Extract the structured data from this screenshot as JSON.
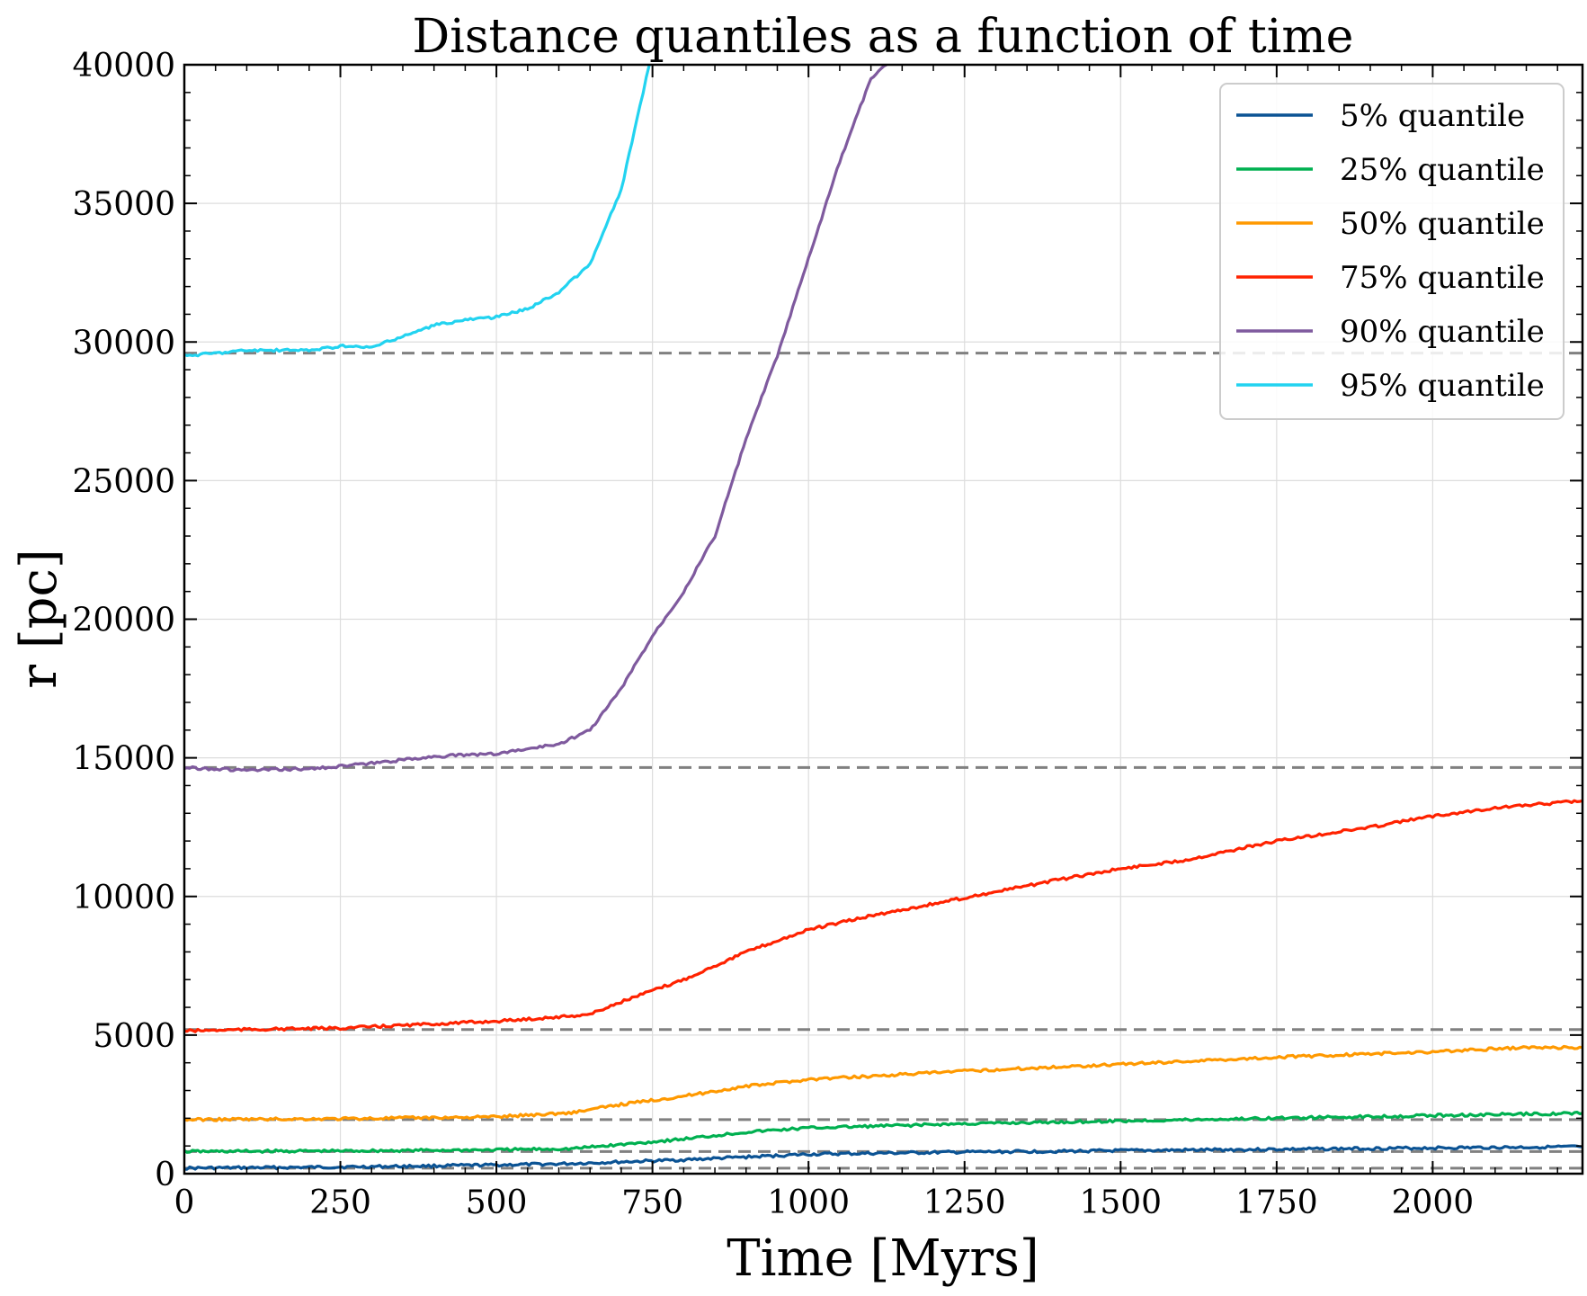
{
  "chart_data": {
    "type": "line",
    "title": "Distance quantiles as a function of time",
    "xlabel": "Time [Myrs]",
    "ylabel": "r [pc]",
    "xlim": [
      0,
      2240
    ],
    "ylim": [
      0,
      40000
    ],
    "xticks": [
      0,
      250,
      500,
      750,
      1000,
      1250,
      1500,
      1750,
      2000
    ],
    "yticks": [
      0,
      5000,
      10000,
      15000,
      20000,
      25000,
      30000,
      35000,
      40000
    ],
    "grid": true,
    "legend_position": "top-right",
    "reference_lines": [
      200,
      800,
      1950,
      5200,
      14650,
      29600
    ],
    "reference_line_color": "#808080",
    "series": [
      {
        "name": "5% quantile",
        "color": "#0b5394",
        "points": [
          [
            0,
            200
          ],
          [
            200,
            230
          ],
          [
            400,
            280
          ],
          [
            600,
            350
          ],
          [
            800,
            500
          ],
          [
            1000,
            700
          ],
          [
            1250,
            780
          ],
          [
            1500,
            830
          ],
          [
            1750,
            880
          ],
          [
            2000,
            930
          ],
          [
            2240,
            970
          ]
        ]
      },
      {
        "name": "25% quantile",
        "color": "#00b050",
        "points": [
          [
            0,
            800
          ],
          [
            250,
            820
          ],
          [
            500,
            860
          ],
          [
            620,
            900
          ],
          [
            700,
            1050
          ],
          [
            800,
            1250
          ],
          [
            900,
            1500
          ],
          [
            1000,
            1650
          ],
          [
            1250,
            1800
          ],
          [
            1500,
            1900
          ],
          [
            1750,
            2000
          ],
          [
            2000,
            2100
          ],
          [
            2240,
            2180
          ]
        ]
      },
      {
        "name": "50% quantile",
        "color": "#ff9900",
        "points": [
          [
            0,
            1950
          ],
          [
            250,
            1980
          ],
          [
            500,
            2050
          ],
          [
            620,
            2200
          ],
          [
            700,
            2500
          ],
          [
            800,
            2800
          ],
          [
            900,
            3150
          ],
          [
            1000,
            3400
          ],
          [
            1250,
            3700
          ],
          [
            1500,
            3950
          ],
          [
            1750,
            4200
          ],
          [
            2000,
            4400
          ],
          [
            2150,
            4550
          ],
          [
            2240,
            4550
          ]
        ]
      },
      {
        "name": "75% quantile",
        "color": "#ff2200",
        "points": [
          [
            0,
            5150
          ],
          [
            100,
            5200
          ],
          [
            250,
            5250
          ],
          [
            400,
            5400
          ],
          [
            500,
            5500
          ],
          [
            600,
            5650
          ],
          [
            650,
            5750
          ],
          [
            700,
            6200
          ],
          [
            800,
            7000
          ],
          [
            900,
            8000
          ],
          [
            1000,
            8800
          ],
          [
            1100,
            9300
          ],
          [
            1250,
            9950
          ],
          [
            1400,
            10600
          ],
          [
            1500,
            11000
          ],
          [
            1600,
            11300
          ],
          [
            1750,
            12000
          ],
          [
            1900,
            12500
          ],
          [
            2000,
            12900
          ],
          [
            2100,
            13200
          ],
          [
            2240,
            13450
          ]
        ]
      },
      {
        "name": "90% quantile",
        "color": "#7f5a9e",
        "points": [
          [
            0,
            14650
          ],
          [
            100,
            14550
          ],
          [
            200,
            14600
          ],
          [
            300,
            14800
          ],
          [
            400,
            15050
          ],
          [
            500,
            15150
          ],
          [
            600,
            15500
          ],
          [
            650,
            16000
          ],
          [
            700,
            17500
          ],
          [
            750,
            19400
          ],
          [
            800,
            21000
          ],
          [
            850,
            23000
          ],
          [
            900,
            26500
          ],
          [
            950,
            29500
          ],
          [
            1000,
            33000
          ],
          [
            1050,
            36500
          ],
          [
            1100,
            39500
          ],
          [
            1125,
            40000
          ]
        ]
      },
      {
        "name": "95% quantile",
        "color": "#22d3f0",
        "points": [
          [
            0,
            29500
          ],
          [
            100,
            29700
          ],
          [
            200,
            29700
          ],
          [
            250,
            29850
          ],
          [
            300,
            29800
          ],
          [
            350,
            30200
          ],
          [
            400,
            30600
          ],
          [
            450,
            30800
          ],
          [
            500,
            30900
          ],
          [
            550,
            31200
          ],
          [
            600,
            31800
          ],
          [
            650,
            32800
          ],
          [
            700,
            35500
          ],
          [
            730,
            38500
          ],
          [
            745,
            40000
          ]
        ]
      }
    ]
  }
}
